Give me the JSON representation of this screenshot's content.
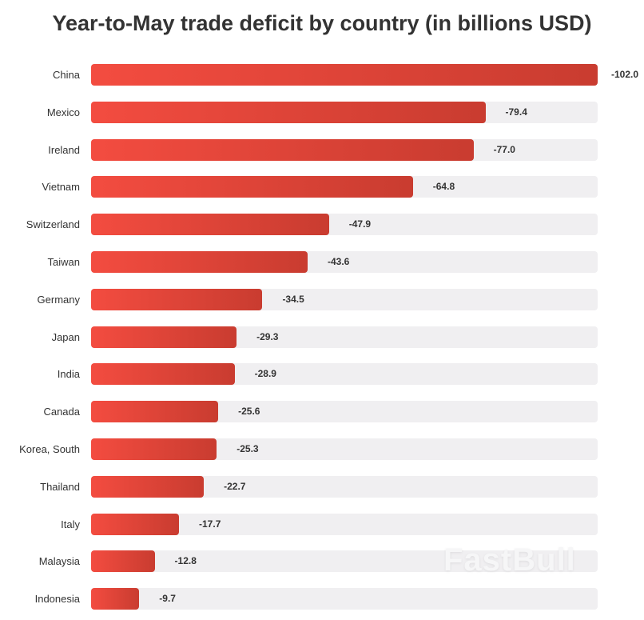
{
  "chart_data": {
    "type": "bar",
    "orientation": "horizontal",
    "title": "Year-to-May trade deficit by country (in billions USD)",
    "categories": [
      "China",
      "Mexico",
      "Ireland",
      "Vietnam",
      "Switzerland",
      "Taiwan",
      "Germany",
      "Japan",
      "India",
      "Canada",
      "Korea, South",
      "Thailand",
      "Italy",
      "Malaysia",
      "Indonesia"
    ],
    "values": [
      -102.0,
      -79.4,
      -77.0,
      -64.8,
      -47.9,
      -43.6,
      -34.5,
      -29.3,
      -28.9,
      -25.6,
      -25.3,
      -22.7,
      -17.7,
      -12.8,
      -9.7
    ],
    "labels": [
      "-102.0",
      "-79.4",
      "-77.0",
      "-64.8",
      "-47.9",
      "-43.6",
      "-34.5",
      "-29.3",
      "-28.9",
      "-25.6",
      "-25.3",
      "-22.7",
      "-17.7",
      "-12.8",
      "-9.7"
    ],
    "xlim": [
      0,
      -102.0
    ],
    "grid": false,
    "colors": {
      "bar_start": "#f34c40",
      "bar_end": "#c93c30",
      "track": "#f0eff1"
    }
  },
  "watermark": "FastBull"
}
